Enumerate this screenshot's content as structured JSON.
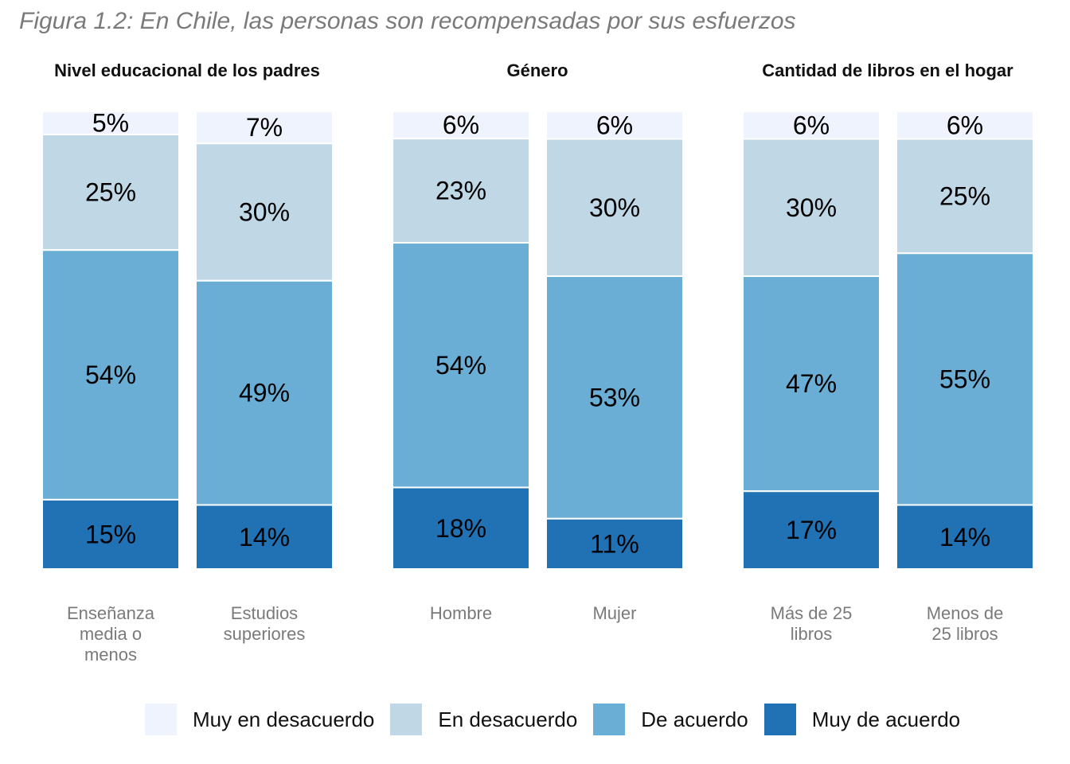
{
  "figure_title": "Figura 1.2: En Chile, las personas son recompensadas por sus esfuerzos",
  "colors": {
    "muy_en_desacuerdo": "#eef3fe",
    "en_desacuerdo": "#c0d7e6",
    "de_acuerdo": "#6aadd5",
    "muy_de_acuerdo": "#2171b5",
    "group_title": "#111111",
    "category_label": "#7a7a7a"
  },
  "chart_data": {
    "type": "bar",
    "stacked": true,
    "normalized": true,
    "legend_position": "bottom",
    "grid": false,
    "legend": [
      "Muy en desacuerdo",
      "En desacuerdo",
      "De acuerdo",
      "Muy de acuerdo"
    ],
    "groups": [
      {
        "title": "Nivel educacional de los padres",
        "bars": [
          {
            "category": [
              "Enseñanza",
              "media o",
              "menos"
            ],
            "values": [
              5,
              25,
              54,
              15
            ],
            "labels": [
              "5%",
              "25%",
              "54%",
              "15%"
            ]
          },
          {
            "category": [
              "Estudios",
              "superiores"
            ],
            "values": [
              7,
              30,
              49,
              14
            ],
            "labels": [
              "7%",
              "30%",
              "49%",
              "14%"
            ]
          }
        ]
      },
      {
        "title": "Género",
        "bars": [
          {
            "category": [
              "Hombre"
            ],
            "values": [
              6,
              23,
              54,
              18
            ],
            "labels": [
              "6%",
              "23%",
              "54%",
              "18%"
            ]
          },
          {
            "category": [
              "Mujer"
            ],
            "values": [
              6,
              30,
              53,
              11
            ],
            "labels": [
              "6%",
              "30%",
              "53%",
              "11%"
            ]
          }
        ]
      },
      {
        "title": "Cantidad de libros en el hogar",
        "bars": [
          {
            "category": [
              "Más de 25",
              "libros"
            ],
            "values": [
              6,
              30,
              47,
              17
            ],
            "labels": [
              "6%",
              "30%",
              "47%",
              "17%"
            ]
          },
          {
            "category": [
              "Menos de",
              "25 libros"
            ],
            "values": [
              6,
              25,
              55,
              14
            ],
            "labels": [
              "6%",
              "25%",
              "55%",
              "14%"
            ]
          }
        ]
      }
    ]
  }
}
